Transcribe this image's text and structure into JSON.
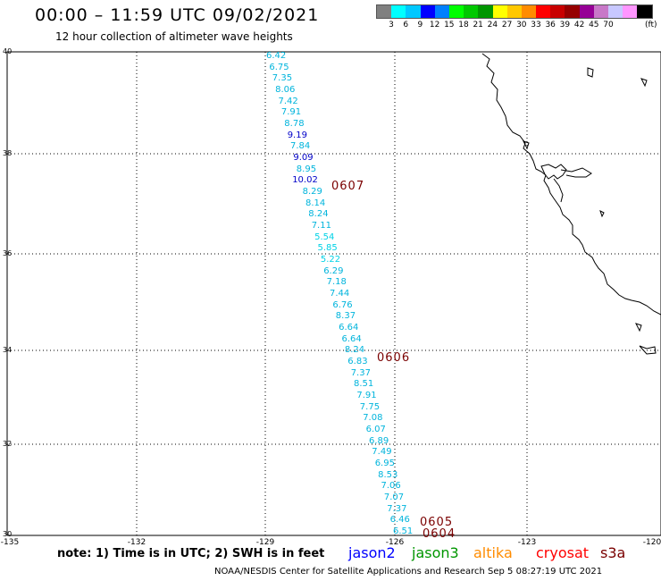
{
  "header": {
    "title": "00:00 – 11:59 UTC 09/02/2021",
    "subtitle": "12 hour collection of altimeter wave heights"
  },
  "colorbar": {
    "colors": [
      "#808080",
      "#00ffff",
      "#00c8ff",
      "#0000ff",
      "#0080ff",
      "#00ff00",
      "#00c800",
      "#009600",
      "#ffff00",
      "#ffc800",
      "#ff8c00",
      "#ff0000",
      "#c80000",
      "#960000",
      "#960096",
      "#c878c8",
      "#c8c8ff",
      "#ff96ff",
      "#000000"
    ],
    "labels": [
      "3",
      "6",
      "9",
      "12",
      "15",
      "18",
      "21",
      "24",
      "27",
      "30",
      "33",
      "36",
      "39",
      "42",
      "45",
      "70"
    ],
    "unit": "(ft)"
  },
  "axes": {
    "lat_labels": [
      "40",
      "38",
      "36",
      "34",
      "32",
      "30"
    ],
    "lon_labels": [
      "-135",
      "-132",
      "-129",
      "-126",
      "-123",
      "-120"
    ]
  },
  "measurements": [
    {
      "value": "6.42",
      "color": "#00b4dc"
    },
    {
      "value": "6.75",
      "color": "#00b4dc"
    },
    {
      "value": "7.35",
      "color": "#00b4dc"
    },
    {
      "value": "8.06",
      "color": "#00b4dc"
    },
    {
      "value": "7.42",
      "color": "#00b4dc"
    },
    {
      "value": "7.91",
      "color": "#00b4dc"
    },
    {
      "value": "8.78",
      "color": "#00b4dc"
    },
    {
      "value": "9.19",
      "color": "#0000c8"
    },
    {
      "value": "7.84",
      "color": "#00b4dc"
    },
    {
      "value": "9.09",
      "color": "#0000c8"
    },
    {
      "value": "8.95",
      "color": "#00b4dc"
    },
    {
      "value": "10.02",
      "color": "#0000c8"
    },
    {
      "value": "8.29",
      "color": "#00b4dc"
    },
    {
      "value": "8.14",
      "color": "#00b4dc"
    },
    {
      "value": "8.24",
      "color": "#00b4dc"
    },
    {
      "value": "7.11",
      "color": "#00b4dc"
    },
    {
      "value": "5.54",
      "color": "#00d2e6"
    },
    {
      "value": "5.85",
      "color": "#00d2e6"
    },
    {
      "value": "5.22",
      "color": "#00d2e6"
    },
    {
      "value": "6.29",
      "color": "#00b4dc"
    },
    {
      "value": "7.18",
      "color": "#00b4dc"
    },
    {
      "value": "7.44",
      "color": "#00b4dc"
    },
    {
      "value": "6.76",
      "color": "#00b4dc"
    },
    {
      "value": "8.37",
      "color": "#00b4dc"
    },
    {
      "value": "6.64",
      "color": "#00b4dc"
    },
    {
      "value": "6.64",
      "color": "#00b4dc"
    },
    {
      "value": "8.24",
      "color": "#00b4dc"
    },
    {
      "value": "6.83",
      "color": "#00b4dc"
    },
    {
      "value": "7.37",
      "color": "#00b4dc"
    },
    {
      "value": "8.51",
      "color": "#00b4dc"
    },
    {
      "value": "7.91",
      "color": "#00b4dc"
    },
    {
      "value": "7.75",
      "color": "#00b4dc"
    },
    {
      "value": "7.08",
      "color": "#00b4dc"
    },
    {
      "value": "6.07",
      "color": "#00b4dc"
    },
    {
      "value": "6.89",
      "color": "#00b4dc"
    },
    {
      "value": "7.49",
      "color": "#00b4dc"
    },
    {
      "value": "6.95",
      "color": "#00b4dc"
    },
    {
      "value": "8.53",
      "color": "#00b4dc"
    },
    {
      "value": "7.06",
      "color": "#00b4dc"
    },
    {
      "value": "7.07",
      "color": "#00b4dc"
    },
    {
      "value": "7.37",
      "color": "#00b4dc"
    },
    {
      "value": "6.46",
      "color": "#00b4dc"
    },
    {
      "value": "6.51",
      "color": "#00b4dc"
    }
  ],
  "time_labels": [
    "0607",
    "0606",
    "0605",
    "0604"
  ],
  "footer": {
    "note": "note:  1) Time is in UTC;  2) SWH is in feet",
    "legend": [
      {
        "name": "jason2",
        "color": "#0000ff"
      },
      {
        "name": "jason3",
        "color": "#009600"
      },
      {
        "name": "altika",
        "color": "#ff8c00"
      },
      {
        "name": "cryosat",
        "color": "#ff0000"
      },
      {
        "name": "s3a",
        "color": "#7a0000"
      }
    ],
    "credit": "NOAA/NESDIS Center for Satellite Applications and Research   Sep  5 08:27:19 UTC 2021"
  }
}
